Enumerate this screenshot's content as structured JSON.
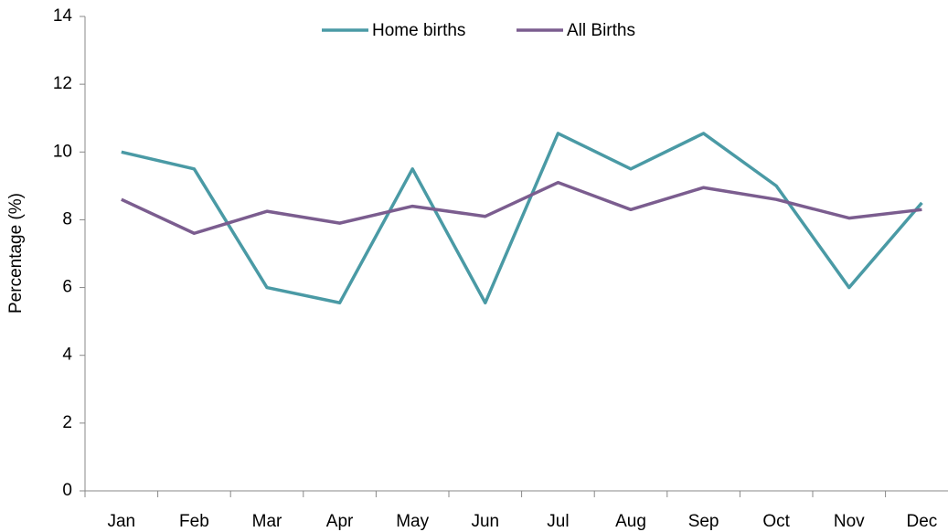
{
  "chart_data": {
    "type": "line",
    "y_label": "Percentage (%)",
    "categories": [
      "Jan",
      "Feb",
      "Mar",
      "Apr",
      "May",
      "Jun",
      "Jul",
      "Aug",
      "Sep",
      "Oct",
      "Nov",
      "Dec"
    ],
    "series": [
      {
        "name": "Home births",
        "color": "#4a9aa5",
        "values": [
          10,
          9.5,
          6,
          5.55,
          9.5,
          5.55,
          10.55,
          9.5,
          10.55,
          9,
          6,
          8.5
        ]
      },
      {
        "name": "All Births",
        "color": "#7b5d8f",
        "values": [
          8.6,
          7.6,
          8.25,
          7.9,
          8.4,
          8.1,
          9.1,
          8.3,
          8.95,
          8.6,
          8.05,
          8.3
        ]
      }
    ],
    "ylim": [
      0,
      14
    ],
    "yticks": [
      0,
      2,
      4,
      6,
      8,
      10,
      12,
      14
    ],
    "grid": false,
    "legend": "top"
  }
}
